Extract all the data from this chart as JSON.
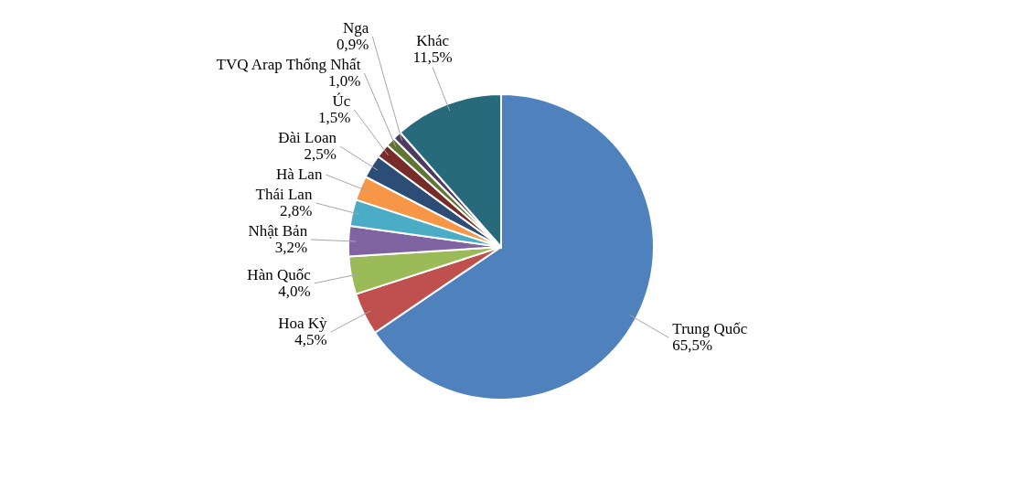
{
  "chart_data": {
    "type": "pie",
    "categories": [
      "Trung Quốc",
      "Hoa Kỳ",
      "Hàn Quốc",
      "Nhật Bản",
      "Thái Lan",
      "Hà Lan",
      "Đài Loan",
      "Úc",
      "TVQ Arap Thống Nhất",
      "Nga",
      "Khác"
    ],
    "values": [
      65.5,
      4.5,
      4.0,
      3.2,
      2.8,
      2.6,
      2.5,
      1.5,
      1.0,
      0.9,
      11.5
    ],
    "value_labels": [
      "65,5%",
      "4,5%",
      "4,0%",
      "3,2%",
      "2,8%",
      null,
      "2,5%",
      "1,5%",
      "1,0%",
      "0,9%",
      "11,5%"
    ],
    "colors": [
      "#4f81bd",
      "#c0504d",
      "#9bbb59",
      "#8064a2",
      "#4bacc6",
      "#f79646",
      "#2c4d75",
      "#772c2a",
      "#5f7530",
      "#4d3b62",
      "#276a7c"
    ]
  }
}
